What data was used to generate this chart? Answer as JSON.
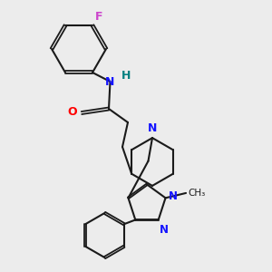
{
  "background_color": "#ececec",
  "bond_color": "#1a1a1a",
  "N_color": "#1414ff",
  "O_color": "#ff0000",
  "F_color": "#cc44cc",
  "H_color": "#008080",
  "figsize": [
    3.0,
    3.0
  ],
  "dpi": 100,
  "xlim": [
    0,
    10
  ],
  "ylim": [
    0,
    10
  ]
}
